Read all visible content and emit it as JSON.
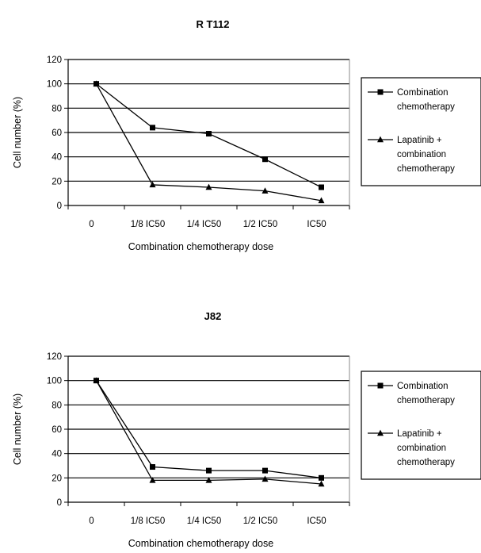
{
  "chart_data": [
    {
      "type": "line",
      "title": "R T112",
      "xlabel": "Combination chemotherapy dose",
      "ylabel": "Cell number (%)",
      "categories": [
        "0",
        "1/8 IC50",
        "1/4 IC50",
        "1/2 IC50",
        "IC50"
      ],
      "ylim": [
        0,
        120
      ],
      "yticks": [
        0,
        20,
        40,
        60,
        80,
        100,
        120
      ],
      "grid": "horizontal",
      "legend_position": "right",
      "series": [
        {
          "name": "Combination chemotherapy",
          "marker": "square",
          "values": [
            100,
            64,
            59,
            38,
            15
          ]
        },
        {
          "name": "Lapatinib + combination chemotherapy",
          "marker": "triangle",
          "values": [
            100,
            17,
            15,
            12,
            4
          ]
        }
      ]
    },
    {
      "type": "line",
      "title": "J82",
      "xlabel": "Combination chemotherapy dose",
      "ylabel": "Cell number (%)",
      "categories": [
        "0",
        "1/8 IC50",
        "1/4 IC50",
        "1/2 IC50",
        "IC50"
      ],
      "ylim": [
        0,
        120
      ],
      "yticks": [
        0,
        20,
        40,
        60,
        80,
        100,
        120
      ],
      "grid": "horizontal",
      "legend_position": "right",
      "series": [
        {
          "name": "Combination chemotherapy",
          "marker": "square",
          "values": [
            100,
            29,
            26,
            26,
            20
          ]
        },
        {
          "name": "Lapatinib + combination chemotherapy",
          "marker": "triangle",
          "values": [
            100,
            18,
            18,
            19,
            15
          ]
        }
      ]
    }
  ]
}
